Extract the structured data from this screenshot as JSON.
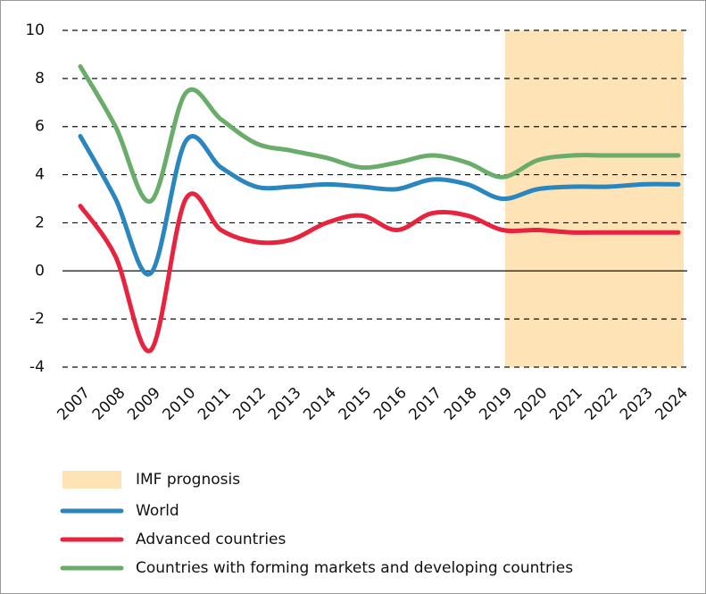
{
  "chart_data": {
    "type": "line",
    "categories": [
      "2007",
      "2008",
      "2009",
      "2010",
      "2011",
      "2012",
      "2013",
      "2014",
      "2015",
      "2016",
      "2017",
      "2018",
      "2019",
      "2020",
      "2021",
      "2022",
      "2023",
      "2024"
    ],
    "series": [
      {
        "name": "World",
        "color": "#2a86bf",
        "values": [
          5.6,
          3.0,
          -0.1,
          5.4,
          4.3,
          3.5,
          3.5,
          3.6,
          3.5,
          3.4,
          3.8,
          3.6,
          3.0,
          3.4,
          3.5,
          3.5,
          3.6,
          3.6
        ]
      },
      {
        "name": "Advanced countries",
        "color": "#e8233e",
        "values": [
          2.7,
          0.6,
          -3.3,
          3.0,
          1.7,
          1.2,
          1.3,
          2.0,
          2.3,
          1.7,
          2.4,
          2.3,
          1.7,
          1.7,
          1.6,
          1.6,
          1.6,
          1.6
        ]
      },
      {
        "name": "Countries with forming markets and developing countries",
        "color": "#6aac6a",
        "values": [
          8.5,
          6.0,
          2.9,
          7.4,
          6.3,
          5.3,
          5.0,
          4.7,
          4.3,
          4.5,
          4.8,
          4.5,
          3.9,
          4.6,
          4.8,
          4.8,
          4.8,
          4.8
        ]
      }
    ],
    "shaded": {
      "name": "IMF prognosis",
      "color": "#fde3b5",
      "from": "2019",
      "to": "2024"
    },
    "ylim": [
      -4,
      10
    ],
    "yticks": [
      -4,
      -2,
      0,
      2,
      4,
      6,
      8,
      10
    ],
    "grid": true
  }
}
